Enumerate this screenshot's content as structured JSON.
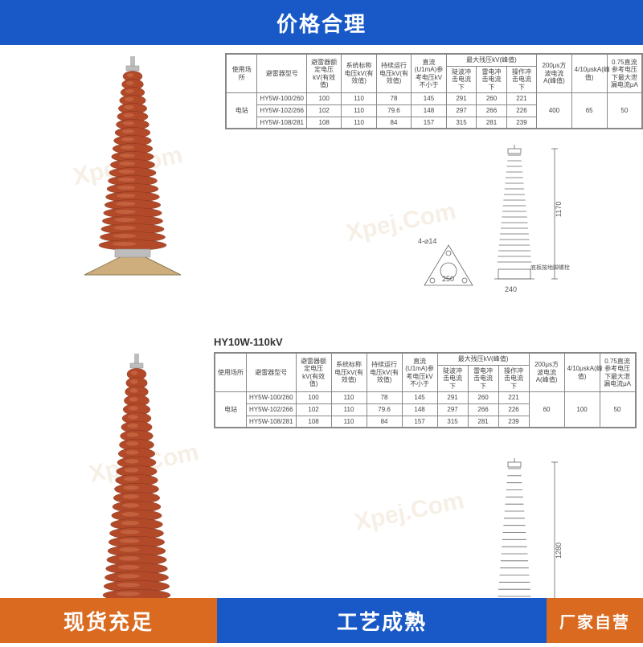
{
  "banners": {
    "top_text": "价格合理",
    "top_bg": "#1859c7",
    "bottom_left_text": "现货充足",
    "bottom_left_bg": "#d96a1f",
    "bottom_right_text": "工艺成熟",
    "bottom_right_bg": "#1859c7",
    "corner_text": "厂家自营",
    "corner_bg": "#d96a1f"
  },
  "watermark": {
    "text": "Xpej.Com",
    "color": "#c08a3e"
  },
  "section1": {
    "arrester": {
      "shed_color": "#b24a2a",
      "highlight": "#d37752",
      "shadow": "#7a2f19",
      "shed_count": 22,
      "base_fill": "#cfae7d",
      "base_stroke": "#8b7b55",
      "metal": "#bdbdbd"
    },
    "table": {
      "headers_row1": [
        "使用场所",
        "避雷器型号",
        "避雷器额定电压kV(有效值)",
        "系统标称电压kV(有效值)",
        "持续运行电压kV(有效值)",
        "直流(U1mA)参考电压kV不小于",
        "最大残压kV(峰值)",
        "",
        "",
        "200μs方波电流A(峰值)",
        "4/10μskA(峰值)",
        "0.75直流参考电压下最大泄漏电流μA"
      ],
      "headers_row2": [
        "",
        "",
        "",
        "",
        "",
        "",
        "陡波冲击电流下",
        "雷电冲击电流下",
        "操作冲击电流下",
        "",
        "",
        ""
      ],
      "rows": [
        [
          "电站",
          "HY5W-100/260",
          "100",
          "110",
          "78",
          "145",
          "291",
          "260",
          "221",
          "400",
          "65",
          "50"
        ],
        [
          "",
          "HY5W-102/266",
          "102",
          "110",
          "79.6",
          "148",
          "297",
          "266",
          "226",
          "",
          "",
          ""
        ],
        [
          "",
          "HY5W-108/281",
          "108",
          "110",
          "84",
          "157",
          "315",
          "281",
          "239",
          "",
          "",
          ""
        ]
      ],
      "merge_first_col": true,
      "merge_last3": true
    },
    "side_drawing": {
      "height_label": "1170",
      "base_width_label": "240",
      "base_plate_label": "250",
      "hole_label": "4-⌀14",
      "note": "底板按地脚螺栓",
      "line_color": "#666"
    }
  },
  "section2": {
    "title": "HY10W-110kV",
    "arrester": {
      "shed_color": "#b24a2a",
      "highlight": "#d37752",
      "shadow": "#7a2f19",
      "shed_count": 26,
      "metal": "#bdbdbd"
    },
    "table": {
      "headers_row1": [
        "使用场所",
        "避雷器型号",
        "避雷器额定电压kV(有效值)",
        "系统标称电压kV(有效值)",
        "持续运行电压kV(有效值)",
        "直流(U1mA)参考电压kV不小于",
        "最大残压kV(峰值)",
        "",
        "",
        "200μs方波电流A(峰值)",
        "4/10μskA(峰值)",
        "0.75直流参考电压下最大泄漏电流μA"
      ],
      "headers_row2": [
        "",
        "",
        "",
        "",
        "",
        "",
        "陡波冲击电流下",
        "雷电冲击电流下",
        "操作冲击电流下",
        "",
        "",
        ""
      ],
      "rows": [
        [
          "电站",
          "HY5W-100/260",
          "100",
          "110",
          "78",
          "145",
          "291",
          "260",
          "221",
          "60",
          "100",
          "50"
        ],
        [
          "",
          "HY5W-102/266",
          "102",
          "110",
          "79.6",
          "148",
          "297",
          "266",
          "226",
          "",
          "",
          ""
        ],
        [
          "",
          "HY5W-108/281",
          "108",
          "110",
          "84",
          "157",
          "315",
          "281",
          "239",
          "",
          "",
          ""
        ]
      ],
      "merge_first_col": true,
      "merge_last3": true
    },
    "side_drawing": {
      "height_label": "1280",
      "line_color": "#666"
    }
  }
}
